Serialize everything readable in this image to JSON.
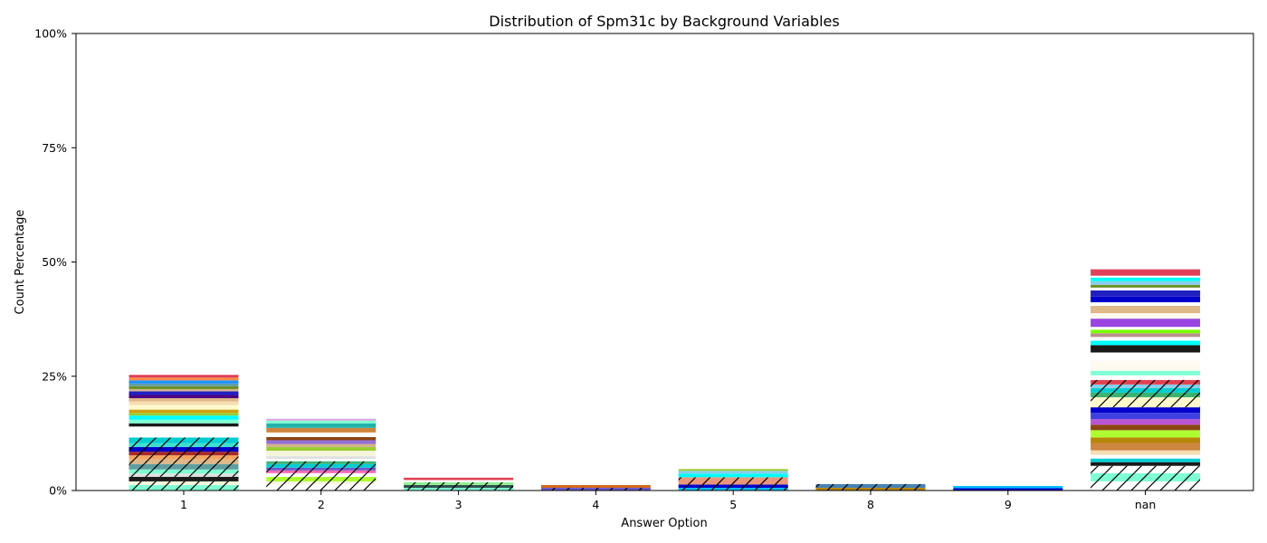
{
  "chart_data": {
    "type": "bar",
    "stacked": true,
    "title": "Distribution of Spm31c by Background Variables",
    "xlabel": "Answer Option",
    "ylabel": "Count Percentage",
    "categories": [
      "1",
      "2",
      "3",
      "4",
      "5",
      "8",
      "9",
      "nan"
    ],
    "yticks": [
      0,
      25,
      50,
      75,
      100
    ],
    "ytick_labels": [
      "0%",
      "25%",
      "50%",
      "75%",
      "100%"
    ],
    "ylim": [
      0,
      100
    ],
    "grid": false,
    "legend": "none",
    "stacks": [
      [
        {
          "value": 1.2,
          "color": "#7fffd4",
          "hatch": true
        },
        {
          "value": 0.8,
          "color": "#f5f5dc",
          "hatch": true
        },
        {
          "value": 1.0,
          "color": "#1a1a1a",
          "hatch": false
        },
        {
          "value": 0.7,
          "color": "#e0e0e0",
          "hatch": true
        },
        {
          "value": 0.9,
          "color": "#7fffd4",
          "hatch": true
        },
        {
          "value": 1.2,
          "color": "#5f9ea0",
          "hatch": true
        },
        {
          "value": 1.0,
          "color": "#deb887",
          "hatch": true
        },
        {
          "value": 0.9,
          "color": "#f4a460",
          "hatch": true
        },
        {
          "value": 0.8,
          "color": "#a52a2a",
          "hatch": true
        },
        {
          "value": 1.0,
          "color": "#0000cd",
          "hatch": true
        },
        {
          "value": 0.9,
          "color": "#40e0d0",
          "hatch": true
        },
        {
          "value": 1.2,
          "color": "#00ced1",
          "hatch": true
        },
        {
          "value": 2.4,
          "color": "#ffffff",
          "hatch": false
        },
        {
          "value": 0.7,
          "color": "#1a1a1a",
          "hatch": false
        },
        {
          "value": 0.8,
          "color": "#7fffd4",
          "hatch": false
        },
        {
          "value": 0.9,
          "color": "#00ffff",
          "hatch": false
        },
        {
          "value": 0.6,
          "color": "#9acd32",
          "hatch": false
        },
        {
          "value": 0.7,
          "color": "#d2a010",
          "hatch": false
        },
        {
          "value": 1.0,
          "color": "#fffacd",
          "hatch": false
        },
        {
          "value": 0.8,
          "color": "#f5deb3",
          "hatch": false
        },
        {
          "value": 0.7,
          "color": "#deb887",
          "hatch": false
        },
        {
          "value": 0.7,
          "color": "#4b0082",
          "hatch": false
        },
        {
          "value": 0.8,
          "color": "#2020c0",
          "hatch": false
        },
        {
          "value": 0.5,
          "color": "#d2b48c",
          "hatch": false
        },
        {
          "value": 0.6,
          "color": "#6b8e23",
          "hatch": false
        },
        {
          "value": 0.6,
          "color": "#5f9ea0",
          "hatch": false
        },
        {
          "value": 0.7,
          "color": "#1e90ff",
          "hatch": false
        },
        {
          "value": 0.6,
          "color": "#ff8c42",
          "hatch": false
        },
        {
          "value": 0.6,
          "color": "#e0405a",
          "hatch": false
        }
      ],
      [
        {
          "value": 1.4,
          "color": "#ffffff",
          "hatch": true
        },
        {
          "value": 0.6,
          "color": "#f5f5dc",
          "hatch": true
        },
        {
          "value": 1.0,
          "color": "#adff2f",
          "hatch": true
        },
        {
          "value": 0.8,
          "color": "#ffffff",
          "hatch": true
        },
        {
          "value": 0.6,
          "color": "#ff69b4",
          "hatch": true
        },
        {
          "value": 0.6,
          "color": "#6a5acd",
          "hatch": true
        },
        {
          "value": 0.8,
          "color": "#00ced1",
          "hatch": true
        },
        {
          "value": 0.6,
          "color": "#3cb371",
          "hatch": true
        },
        {
          "value": 0.5,
          "color": "#ffffff",
          "hatch": false
        },
        {
          "value": 0.6,
          "color": "#e0e0e0",
          "hatch": false
        },
        {
          "value": 1.2,
          "color": "#f5f5dc",
          "hatch": false
        },
        {
          "value": 0.8,
          "color": "#9acd32",
          "hatch": false
        },
        {
          "value": 0.7,
          "color": "#d2b48c",
          "hatch": false
        },
        {
          "value": 0.8,
          "color": "#9370db",
          "hatch": false
        },
        {
          "value": 0.7,
          "color": "#8b4513",
          "hatch": false
        },
        {
          "value": 1.0,
          "color": "#ffffff",
          "hatch": false
        },
        {
          "value": 1.0,
          "color": "#cd853f",
          "hatch": false
        },
        {
          "value": 1.0,
          "color": "#20b2aa",
          "hatch": false
        },
        {
          "value": 0.6,
          "color": "#7fffd4",
          "hatch": false
        },
        {
          "value": 0.4,
          "color": "#dda0dd",
          "hatch": false
        }
      ],
      [
        {
          "value": 0.6,
          "color": "#7fffd4",
          "hatch": true
        },
        {
          "value": 0.6,
          "color": "#2f4f4f",
          "hatch": true
        },
        {
          "value": 0.6,
          "color": "#90ee90",
          "hatch": true
        },
        {
          "value": 0.5,
          "color": "#ffffff",
          "hatch": false
        },
        {
          "value": 0.5,
          "color": "#e04050",
          "hatch": false
        }
      ],
      [
        {
          "value": 0.6,
          "color": "#6a5acd",
          "hatch": true
        },
        {
          "value": 0.6,
          "color": "#d2691e",
          "hatch": false
        }
      ],
      [
        {
          "value": 0.6,
          "color": "#00bfff",
          "hatch": true
        },
        {
          "value": 0.7,
          "color": "#0000cd",
          "hatch": true
        },
        {
          "value": 1.6,
          "color": "#e9967a",
          "hatch": true
        },
        {
          "value": 0.8,
          "color": "#00ffff",
          "hatch": false
        },
        {
          "value": 0.6,
          "color": "#87ceeb",
          "hatch": false
        },
        {
          "value": 0.4,
          "color": "#9acd32",
          "hatch": false
        }
      ],
      [
        {
          "value": 0.6,
          "color": "#b8860b",
          "hatch": true
        },
        {
          "value": 0.8,
          "color": "#4682b4",
          "hatch": true
        }
      ],
      [
        {
          "value": 0.5,
          "color": "#0000cd",
          "hatch": false
        },
        {
          "value": 0.5,
          "color": "#00bfff",
          "hatch": false
        }
      ],
      [
        {
          "value": 2.0,
          "color": "#ffffff",
          "hatch": true
        },
        {
          "value": 1.8,
          "color": "#7fffd4",
          "hatch": true
        },
        {
          "value": 1.6,
          "color": "#ffffff",
          "hatch": true
        },
        {
          "value": 0.8,
          "color": "#1a1a1a",
          "hatch": false
        },
        {
          "value": 0.8,
          "color": "#00ced1",
          "hatch": false
        },
        {
          "value": 0.8,
          "color": "#ffffff",
          "hatch": false
        },
        {
          "value": 1.0,
          "color": "#f5deb3",
          "hatch": false
        },
        {
          "value": 1.6,
          "color": "#cd853f",
          "hatch": false
        },
        {
          "value": 1.2,
          "color": "#b8860b",
          "hatch": false
        },
        {
          "value": 1.6,
          "color": "#adff2f",
          "hatch": false
        },
        {
          "value": 1.2,
          "color": "#8b4513",
          "hatch": false
        },
        {
          "value": 1.2,
          "color": "#ba55d3",
          "hatch": false
        },
        {
          "value": 1.4,
          "color": "#4040e0",
          "hatch": false
        },
        {
          "value": 1.2,
          "color": "#0000cd",
          "hatch": false
        },
        {
          "value": 2.2,
          "color": "#fffacd",
          "hatch": true
        },
        {
          "value": 1.0,
          "color": "#3cb371",
          "hatch": true
        },
        {
          "value": 1.0,
          "color": "#00ced1",
          "hatch": true
        },
        {
          "value": 0.8,
          "color": "#87ceeb",
          "hatch": true
        },
        {
          "value": 1.0,
          "color": "#e04050",
          "hatch": true
        },
        {
          "value": 1.0,
          "color": "#ffffff",
          "hatch": false
        },
        {
          "value": 1.0,
          "color": "#7fffd4",
          "hatch": false
        },
        {
          "value": 2.2,
          "color": "#fffaf0",
          "hatch": false
        },
        {
          "value": 1.8,
          "color": "#ffffff",
          "hatch": false
        },
        {
          "value": 1.6,
          "color": "#1a1a1a",
          "hatch": false
        },
        {
          "value": 1.0,
          "color": "#00ffff",
          "hatch": false
        },
        {
          "value": 0.8,
          "color": "#ffffff",
          "hatch": false
        },
        {
          "value": 0.8,
          "color": "#bc8f8f",
          "hatch": false
        },
        {
          "value": 0.8,
          "color": "#7cfc00",
          "hatch": false
        },
        {
          "value": 0.6,
          "color": "#ffffff",
          "hatch": false
        },
        {
          "value": 1.8,
          "color": "#9b45e0",
          "hatch": false
        },
        {
          "value": 1.2,
          "color": "#fffaf0",
          "hatch": false
        },
        {
          "value": 1.6,
          "color": "#deb887",
          "hatch": false
        },
        {
          "value": 0.8,
          "color": "#ffffff",
          "hatch": false
        },
        {
          "value": 1.2,
          "color": "#0000cd",
          "hatch": false
        },
        {
          "value": 1.4,
          "color": "#2020c0",
          "hatch": false
        },
        {
          "value": 0.6,
          "color": "#ffffff",
          "hatch": false
        },
        {
          "value": 0.6,
          "color": "#6b8e23",
          "hatch": false
        },
        {
          "value": 0.8,
          "color": "#87ceeb",
          "hatch": false
        },
        {
          "value": 0.8,
          "color": "#00ffff",
          "hatch": false
        },
        {
          "value": 0.4,
          "color": "#ffffff",
          "hatch": false
        },
        {
          "value": 1.4,
          "color": "#e0405a",
          "hatch": false
        }
      ]
    ]
  }
}
